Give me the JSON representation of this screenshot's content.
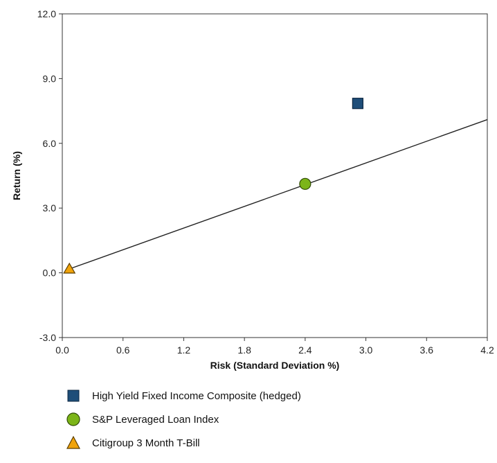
{
  "chart_data": {
    "type": "scatter",
    "title": "",
    "xlabel": "Risk (Standard Deviation %)",
    "ylabel": "Return (%)",
    "xlim": [
      0.0,
      4.2
    ],
    "ylim": [
      -3.0,
      12.0
    ],
    "xticks": [
      0.0,
      0.6,
      1.2,
      1.8,
      2.4,
      3.0,
      3.6,
      4.2
    ],
    "yticks": [
      -3.0,
      0.0,
      3.0,
      6.0,
      9.0,
      12.0
    ],
    "xtick_labels": [
      "0.0",
      "0.6",
      "1.2",
      "1.8",
      "2.4",
      "3.0",
      "3.6",
      "4.2"
    ],
    "ytick_labels": [
      "-3.0",
      "0.0",
      "3.0",
      "6.0",
      "9.0",
      "12.0"
    ],
    "grid": false,
    "legend_position": "bottom",
    "series": [
      {
        "name": "High Yield Fixed Income Composite (hedged)",
        "marker": "square",
        "color": "#1f4e79",
        "x": [
          2.92
        ],
        "y": [
          7.85
        ]
      },
      {
        "name": "S&P Leveraged Loan Index",
        "marker": "circle",
        "color": "#7cb518",
        "x": [
          2.4
        ],
        "y": [
          4.12
        ]
      },
      {
        "name": "Citigroup 3 Month T-Bill",
        "marker": "triangle",
        "color": "#f0a30a",
        "x": [
          0.07
        ],
        "y": [
          0.18
        ]
      }
    ],
    "capital_market_line": {
      "x": [
        0.07,
        4.2
      ],
      "y": [
        0.18,
        7.1
      ],
      "color": "#222222"
    }
  }
}
